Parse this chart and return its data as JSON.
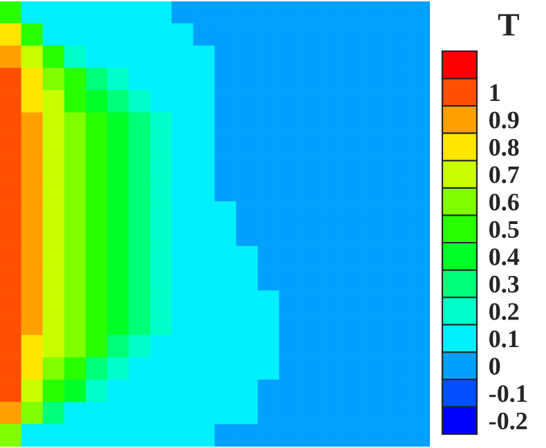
{
  "chart_data": {
    "type": "heatmap",
    "clabel": "T",
    "categories": [
      null,
      null,
      null,
      null,
      null,
      null,
      null,
      null,
      null,
      null,
      null,
      null,
      null,
      null,
      null,
      null,
      null,
      null,
      null,
      null
    ],
    "y_categories": [
      null,
      null,
      null,
      null,
      null,
      null,
      null,
      null,
      null,
      null,
      null,
      null,
      null,
      null,
      null,
      null,
      null,
      null,
      null,
      null
    ],
    "colors": [
      "#0000ff",
      "#0050ff",
      "#00a0ff",
      "#00f0ff",
      "#00ffc8",
      "#00ff78",
      "#00ff28",
      "#28ff00",
      "#80ff00",
      "#c8ff00",
      "#ffe600",
      "#ffa000",
      "#ff5000",
      "#ff0000"
    ],
    "clim": [
      -0.25,
      1.15
    ],
    "cticks": [
      -0.2,
      -0.1,
      0,
      0.1,
      0.2,
      0.3,
      0.4,
      0.5,
      0.6,
      0.7,
      0.8,
      0.9,
      1
    ],
    "cells": [
      [
        0.5,
        0.1,
        0.1,
        0.1,
        0.1,
        0.1,
        0.1,
        0.1,
        0,
        0,
        0,
        0,
        0,
        0,
        0,
        0,
        0,
        0,
        0,
        0
      ],
      [
        0.8,
        0.5,
        0.1,
        0.1,
        0.1,
        0.1,
        0.1,
        0.1,
        0.1,
        0,
        0,
        0,
        0,
        0,
        0,
        0,
        0,
        0,
        0,
        0
      ],
      [
        0.9,
        0.7,
        0.5,
        0.2,
        0.1,
        0.1,
        0.1,
        0.1,
        0.1,
        0.1,
        0,
        0,
        0,
        0,
        0,
        0,
        0,
        0,
        0,
        0
      ],
      [
        1,
        0.8,
        0.6,
        0.5,
        0.3,
        0.2,
        0.1,
        0.1,
        0.1,
        0.1,
        0,
        0,
        0,
        0,
        0,
        0,
        0,
        0,
        0,
        0
      ],
      [
        1,
        0.8,
        0.7,
        0.5,
        0.4,
        0.3,
        0.2,
        0.1,
        0.1,
        0.1,
        0,
        0,
        0,
        0,
        0,
        0,
        0,
        0,
        0,
        0
      ],
      [
        1,
        0.9,
        0.7,
        0.6,
        0.5,
        0.4,
        0.3,
        0.2,
        0.1,
        0.1,
        0,
        0,
        0,
        0,
        0,
        0,
        0,
        0,
        0,
        0
      ],
      [
        1,
        0.9,
        0.7,
        0.6,
        0.5,
        0.4,
        0.3,
        0.2,
        0.1,
        0.1,
        0,
        0,
        0,
        0,
        0,
        0,
        0,
        0,
        0,
        0
      ],
      [
        1,
        0.9,
        0.7,
        0.6,
        0.5,
        0.4,
        0.3,
        0.2,
        0.1,
        0.1,
        0,
        0,
        0,
        0,
        0,
        0,
        0,
        0,
        0,
        0
      ],
      [
        1,
        0.9,
        0.7,
        0.6,
        0.5,
        0.4,
        0.3,
        0.2,
        0.1,
        0.1,
        0,
        0,
        0,
        0,
        0,
        0,
        0,
        0,
        0,
        0
      ],
      [
        1,
        0.9,
        0.7,
        0.6,
        0.5,
        0.4,
        0.3,
        0.2,
        0.1,
        0.1,
        0.1,
        0,
        0,
        0,
        0,
        0,
        0,
        0,
        0,
        0
      ],
      [
        1,
        0.9,
        0.7,
        0.6,
        0.5,
        0.4,
        0.3,
        0.2,
        0.1,
        0.1,
        0.1,
        0,
        0,
        0,
        0,
        0,
        0,
        0,
        0,
        0
      ],
      [
        1,
        0.9,
        0.7,
        0.6,
        0.5,
        0.4,
        0.3,
        0.2,
        0.1,
        0.1,
        0.1,
        0.1,
        0,
        0,
        0,
        0,
        0,
        0,
        0,
        0
      ],
      [
        1,
        0.9,
        0.7,
        0.6,
        0.5,
        0.4,
        0.3,
        0.2,
        0.1,
        0.1,
        0.1,
        0.1,
        0,
        0,
        0,
        0,
        0,
        0,
        0,
        0
      ],
      [
        1,
        0.9,
        0.7,
        0.6,
        0.5,
        0.4,
        0.3,
        0.2,
        0.1,
        0.1,
        0.1,
        0.1,
        0.1,
        0,
        0,
        0,
        0,
        0,
        0,
        0
      ],
      [
        1,
        0.9,
        0.7,
        0.6,
        0.5,
        0.4,
        0.3,
        0.2,
        0.1,
        0.1,
        0.1,
        0.1,
        0.1,
        0,
        0,
        0,
        0,
        0,
        0,
        0
      ],
      [
        1,
        0.8,
        0.7,
        0.6,
        0.5,
        0.3,
        0.2,
        0.1,
        0.1,
        0.1,
        0.1,
        0.1,
        0.1,
        0,
        0,
        0,
        0,
        0,
        0,
        0
      ],
      [
        1,
        0.8,
        0.6,
        0.5,
        0.3,
        0.2,
        0.1,
        0.1,
        0.1,
        0.1,
        0.1,
        0.1,
        0.1,
        0,
        0,
        0,
        0,
        0,
        0,
        0
      ],
      [
        1,
        0.7,
        0.5,
        0.4,
        0.2,
        0.1,
        0.1,
        0.1,
        0.1,
        0.1,
        0.1,
        0.1,
        0,
        0,
        0,
        0,
        0,
        0,
        0,
        0
      ],
      [
        0.9,
        0.6,
        0.3,
        0.1,
        0.1,
        0.1,
        0.1,
        0.1,
        0.1,
        0.1,
        0.1,
        0.1,
        0,
        0,
        0,
        0,
        0,
        0,
        0,
        0
      ],
      [
        0.6,
        0.1,
        0.1,
        0.1,
        0.1,
        0.1,
        0.1,
        0.1,
        0.1,
        0.1,
        0,
        0,
        0,
        0,
        0,
        0,
        0,
        0,
        0,
        0
      ]
    ]
  }
}
